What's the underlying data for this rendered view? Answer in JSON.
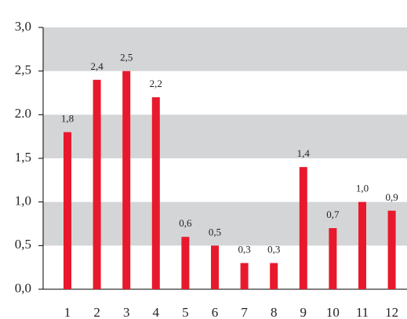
{
  "chart_data": {
    "type": "bar",
    "categories": [
      "1",
      "2",
      "3",
      "4",
      "5",
      "6",
      "7",
      "8",
      "9",
      "10",
      "11",
      "12"
    ],
    "values": [
      1.8,
      2.4,
      2.5,
      2.2,
      0.6,
      0.5,
      0.3,
      0.3,
      1.4,
      0.7,
      1.0,
      0.9
    ],
    "value_labels": [
      "1,8",
      "2,4",
      "2,5",
      "2,2",
      "0,6",
      "0,5",
      "0,3",
      "0,3",
      "1,4",
      "0,7",
      "1,0",
      "0,9"
    ],
    "color": "#e8192c",
    "ylim": [
      0,
      3
    ],
    "yticks": [
      {
        "value": 0,
        "label": "0,0"
      },
      {
        "value": 0.5,
        "label": "0,5"
      },
      {
        "value": 1,
        "label": "1,0"
      },
      {
        "value": 1.5,
        "label": "1,5"
      },
      {
        "value": 2,
        "label": "2.0"
      },
      {
        "value": 2.5,
        "label": "2,5"
      },
      {
        "value": 3,
        "label": "3,0"
      }
    ],
    "grid": true,
    "grid_color": "#d4d5d7"
  }
}
